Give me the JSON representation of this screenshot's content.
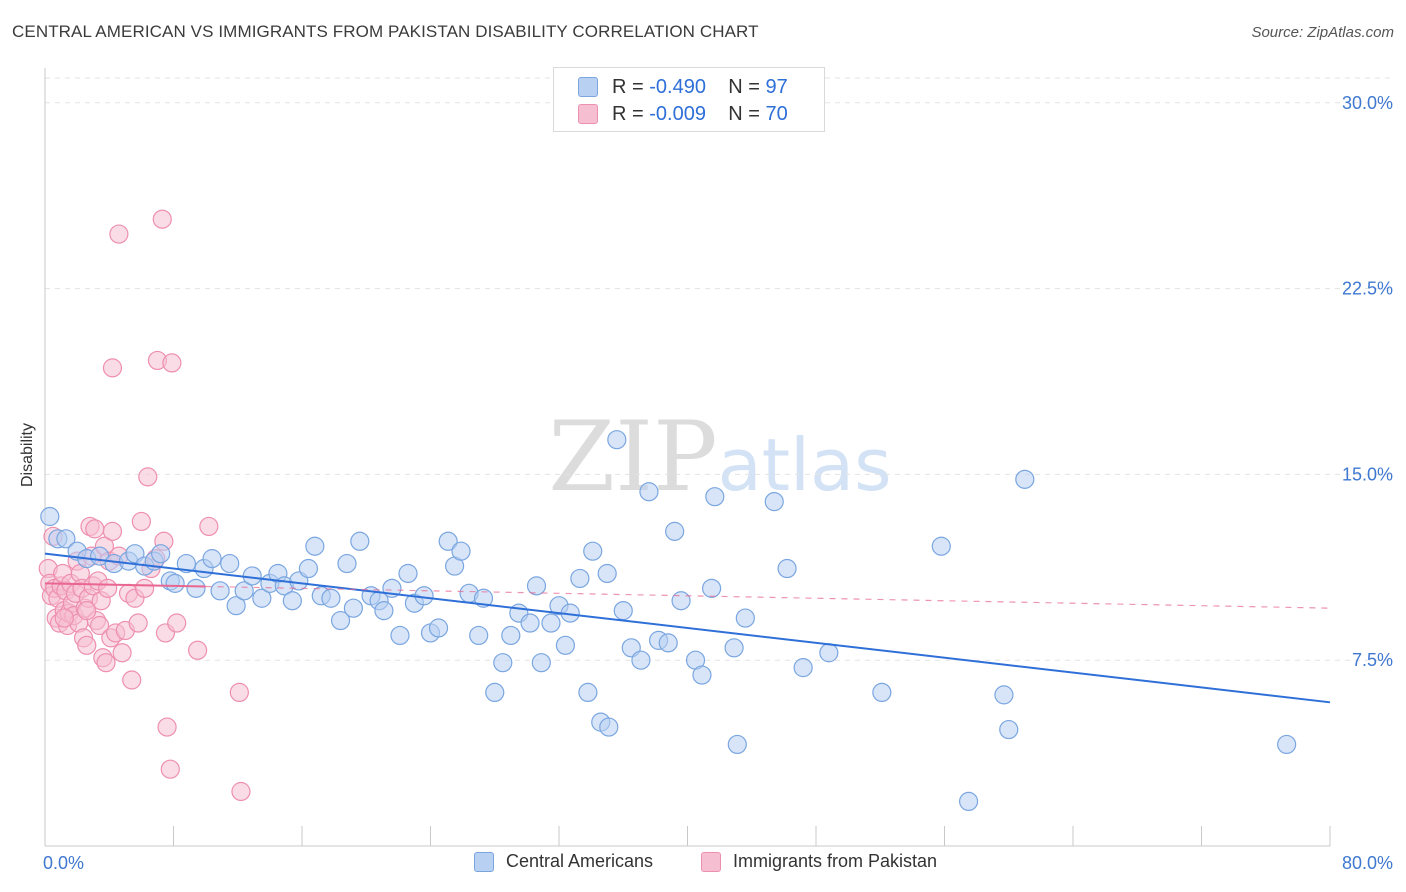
{
  "header": {
    "title": "CENTRAL AMERICAN VS IMMIGRANTS FROM PAKISTAN DISABILITY CORRELATION CHART",
    "source": "Source: ZipAtlas.com"
  },
  "legend_top": {
    "rows": [
      {
        "r_label": "R =",
        "r_value": "-0.490",
        "n_label": "N =",
        "n_value": "97"
      },
      {
        "r_label": "R =",
        "r_value": "-0.009",
        "n_label": "N =",
        "n_value": "70"
      }
    ]
  },
  "legend_bottom": {
    "items": [
      "Central Americans",
      "Immigrants from Pakistan"
    ]
  },
  "colors": {
    "blue_fill": "#b8d0f2",
    "blue_stroke": "#7aa6e0",
    "blue_line": "#2e6fd8",
    "pink_fill": "#f6bfd1",
    "pink_stroke": "#ee8fb0",
    "pink_line": "#e8668f",
    "tick_text": "#3f78d0",
    "grid": "#e3e3e3"
  },
  "chart_data": {
    "type": "scatter",
    "title": "CENTRAL AMERICAN VS IMMIGRANTS FROM PAKISTAN DISABILITY CORRELATION CHART",
    "xlabel": "",
    "ylabel": "Disability",
    "xlim": [
      0,
      80
    ],
    "ylim": [
      0,
      31
    ],
    "x_tick_labels": [
      "0.0%",
      "80.0%"
    ],
    "y_ticks": [
      7.5,
      15.0,
      22.5,
      30.0
    ],
    "y_tick_labels": [
      "7.5%",
      "15.0%",
      "22.5%",
      "30.0%"
    ],
    "grid": true,
    "watermark": "ZIPatlas",
    "series": [
      {
        "name": "Central Americans",
        "color": "blue",
        "trend": {
          "x": [
            0,
            80
          ],
          "y": [
            11.8,
            5.8
          ]
        },
        "points": [
          [
            0.3,
            13.3
          ],
          [
            0.8,
            12.4
          ],
          [
            1.3,
            12.4
          ],
          [
            2.0,
            11.9
          ],
          [
            2.6,
            11.6
          ],
          [
            3.4,
            11.7
          ],
          [
            4.3,
            11.4
          ],
          [
            5.2,
            11.5
          ],
          [
            5.6,
            11.8
          ],
          [
            6.2,
            11.3
          ],
          [
            6.8,
            11.5
          ],
          [
            7.2,
            11.8
          ],
          [
            7.8,
            10.7
          ],
          [
            8.1,
            10.6
          ],
          [
            8.8,
            11.4
          ],
          [
            9.4,
            10.4
          ],
          [
            9.9,
            11.2
          ],
          [
            10.4,
            11.6
          ],
          [
            10.9,
            10.3
          ],
          [
            11.5,
            11.4
          ],
          [
            11.9,
            9.7
          ],
          [
            12.4,
            10.3
          ],
          [
            12.9,
            10.9
          ],
          [
            13.5,
            10.0
          ],
          [
            14.0,
            10.6
          ],
          [
            14.5,
            11.0
          ],
          [
            14.9,
            10.5
          ],
          [
            15.4,
            9.9
          ],
          [
            15.8,
            10.7
          ],
          [
            16.4,
            11.2
          ],
          [
            16.8,
            12.1
          ],
          [
            17.2,
            10.1
          ],
          [
            17.8,
            10.0
          ],
          [
            18.4,
            9.1
          ],
          [
            18.8,
            11.4
          ],
          [
            19.2,
            9.6
          ],
          [
            19.6,
            12.3
          ],
          [
            20.3,
            10.1
          ],
          [
            20.8,
            9.9
          ],
          [
            21.1,
            9.5
          ],
          [
            21.6,
            10.4
          ],
          [
            22.1,
            8.5
          ],
          [
            22.6,
            11.0
          ],
          [
            23.0,
            9.8
          ],
          [
            23.6,
            10.1
          ],
          [
            24.0,
            8.6
          ],
          [
            24.5,
            8.8
          ],
          [
            25.1,
            12.3
          ],
          [
            25.5,
            11.3
          ],
          [
            25.9,
            11.9
          ],
          [
            26.4,
            10.2
          ],
          [
            27.0,
            8.5
          ],
          [
            27.3,
            10.0
          ],
          [
            28.0,
            6.2
          ],
          [
            28.5,
            7.4
          ],
          [
            29.0,
            8.5
          ],
          [
            29.5,
            9.4
          ],
          [
            30.2,
            9.0
          ],
          [
            30.6,
            10.5
          ],
          [
            30.9,
            7.4
          ],
          [
            31.5,
            9.0
          ],
          [
            32.0,
            9.7
          ],
          [
            32.4,
            8.1
          ],
          [
            32.7,
            9.4
          ],
          [
            33.3,
            10.8
          ],
          [
            33.8,
            6.2
          ],
          [
            34.1,
            11.9
          ],
          [
            34.6,
            5.0
          ],
          [
            35.1,
            4.8
          ],
          [
            35.6,
            16.4
          ],
          [
            36.0,
            9.5
          ],
          [
            36.5,
            8.0
          ],
          [
            37.1,
            7.5
          ],
          [
            37.6,
            14.3
          ],
          [
            38.2,
            8.3
          ],
          [
            38.8,
            8.2
          ],
          [
            39.2,
            12.7
          ],
          [
            39.6,
            9.9
          ],
          [
            40.5,
            7.5
          ],
          [
            40.9,
            6.9
          ],
          [
            41.7,
            14.1
          ],
          [
            42.9,
            8.0
          ],
          [
            43.1,
            4.1
          ],
          [
            45.4,
            13.9
          ],
          [
            46.2,
            11.2
          ],
          [
            47.2,
            7.2
          ],
          [
            48.8,
            7.8
          ],
          [
            52.1,
            6.2
          ],
          [
            55.8,
            12.1
          ],
          [
            59.7,
            6.1
          ],
          [
            60.0,
            4.7
          ],
          [
            61.0,
            14.8
          ],
          [
            57.5,
            1.8
          ],
          [
            77.3,
            4.1
          ],
          [
            41.5,
            10.4
          ],
          [
            35.0,
            11.0
          ],
          [
            43.6,
            9.2
          ]
        ]
      },
      {
        "name": "Immigrants from Pakistan",
        "color": "pink",
        "trend": {
          "x": [
            0,
            80
          ],
          "y": [
            10.6,
            9.6
          ]
        },
        "points": [
          [
            0.2,
            11.2
          ],
          [
            0.3,
            10.6
          ],
          [
            0.4,
            10.1
          ],
          [
            0.5,
            12.5
          ],
          [
            0.6,
            10.4
          ],
          [
            0.7,
            9.2
          ],
          [
            0.8,
            10.0
          ],
          [
            0.9,
            9.0
          ],
          [
            1.0,
            10.5
          ],
          [
            1.1,
            11.0
          ],
          [
            1.2,
            9.5
          ],
          [
            1.3,
            10.3
          ],
          [
            1.4,
            8.9
          ],
          [
            1.5,
            9.4
          ],
          [
            1.6,
            10.6
          ],
          [
            1.7,
            9.8
          ],
          [
            1.8,
            9.3
          ],
          [
            1.9,
            10.2
          ],
          [
            2.0,
            11.5
          ],
          [
            2.1,
            9.0
          ],
          [
            2.2,
            11.0
          ],
          [
            2.3,
            10.4
          ],
          [
            2.4,
            8.4
          ],
          [
            2.5,
            9.6
          ],
          [
            2.6,
            8.1
          ],
          [
            2.7,
            10.0
          ],
          [
            2.8,
            12.9
          ],
          [
            2.9,
            11.7
          ],
          [
            3.0,
            10.5
          ],
          [
            3.1,
            12.8
          ],
          [
            3.2,
            9.1
          ],
          [
            3.3,
            10.7
          ],
          [
            3.4,
            8.9
          ],
          [
            3.5,
            9.9
          ],
          [
            3.6,
            7.6
          ],
          [
            3.7,
            12.1
          ],
          [
            3.8,
            7.4
          ],
          [
            3.9,
            10.4
          ],
          [
            4.0,
            11.5
          ],
          [
            4.1,
            8.4
          ],
          [
            4.2,
            12.7
          ],
          [
            4.4,
            8.6
          ],
          [
            4.6,
            11.7
          ],
          [
            4.8,
            7.8
          ],
          [
            5.0,
            8.7
          ],
          [
            5.2,
            10.2
          ],
          [
            5.4,
            6.7
          ],
          [
            5.6,
            10.0
          ],
          [
            5.8,
            9.0
          ],
          [
            6.0,
            13.1
          ],
          [
            6.2,
            10.4
          ],
          [
            6.4,
            14.9
          ],
          [
            6.6,
            11.2
          ],
          [
            7.0,
            19.6
          ],
          [
            6.9,
            11.6
          ],
          [
            7.4,
            12.3
          ],
          [
            7.5,
            8.6
          ],
          [
            7.6,
            4.8
          ],
          [
            7.9,
            19.5
          ],
          [
            7.8,
            3.1
          ],
          [
            8.2,
            9.0
          ],
          [
            9.5,
            7.9
          ],
          [
            10.2,
            12.9
          ],
          [
            12.1,
            6.2
          ],
          [
            12.2,
            2.2
          ],
          [
            4.6,
            24.7
          ],
          [
            7.3,
            25.3
          ],
          [
            4.2,
            19.3
          ],
          [
            1.2,
            9.2
          ],
          [
            2.6,
            9.5
          ]
        ]
      }
    ]
  }
}
